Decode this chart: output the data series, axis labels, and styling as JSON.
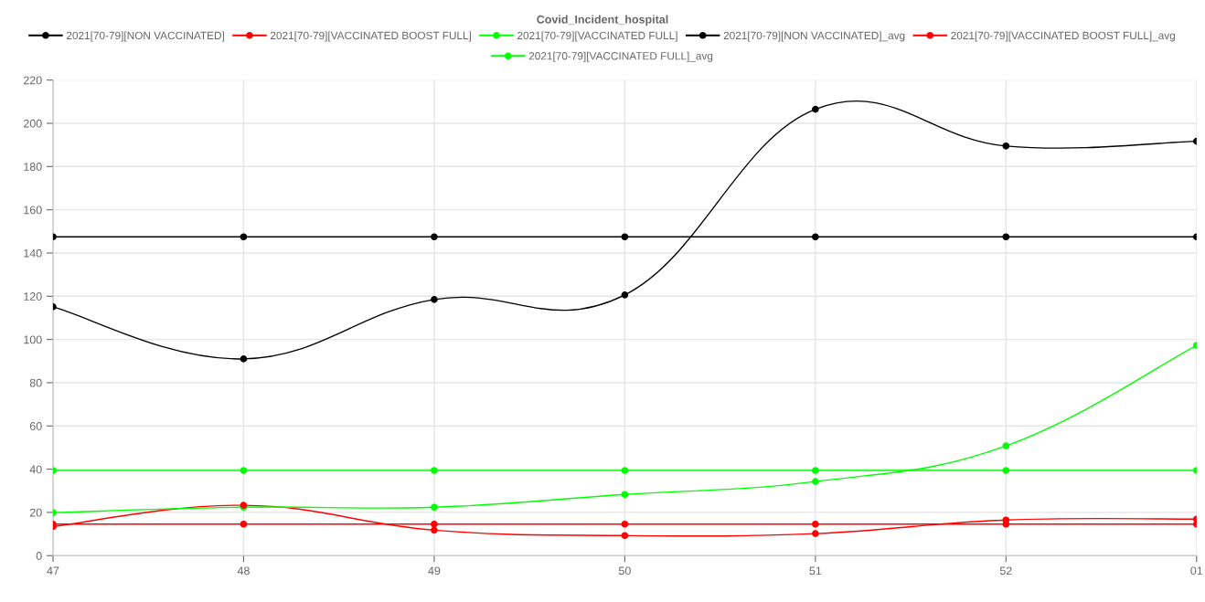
{
  "chart_data": {
    "type": "line",
    "title": "Covid_Incident_hospital",
    "categories": [
      "47",
      "48",
      "49",
      "50",
      "51",
      "52",
      "01"
    ],
    "series": [
      {
        "name": "2021[70-79][NON VACCINATED]",
        "color": "#000000",
        "values": [
          115.1,
          91,
          118.5,
          120.6,
          206.5,
          189.5,
          191.7
        ]
      },
      {
        "name": "2021[70-79][VACCINATED BOOST FULL]",
        "color": "#ff0000",
        "values": [
          13.5,
          23.3,
          11.8,
          9.3,
          10.2,
          16.5,
          16.9
        ]
      },
      {
        "name": "2021[70-79][VACCINATED FULL]",
        "color": "#00ff00",
        "values": [
          19.9,
          22.4,
          22.4,
          28.3,
          34.3,
          50.8,
          97.3
        ]
      },
      {
        "name": "2021[70-79][NON VACCINATED]_avg",
        "color": "#000000",
        "values": [
          147.5,
          147.5,
          147.5,
          147.5,
          147.5,
          147.5,
          147.5
        ]
      },
      {
        "name": "2021[70-79][VACCINATED BOOST FULL]_avg",
        "color": "#ff0000",
        "values": [
          14.6,
          14.6,
          14.6,
          14.6,
          14.6,
          14.6,
          14.6
        ]
      },
      {
        "name": "2021[70-79][VACCINATED FULL]_avg",
        "color": "#00ff00",
        "values": [
          39.4,
          39.4,
          39.4,
          39.4,
          39.4,
          39.4,
          39.4
        ]
      }
    ],
    "ylim": [
      0,
      220
    ],
    "yticks": [
      0,
      20,
      40,
      60,
      80,
      100,
      120,
      140,
      160,
      180,
      200,
      220
    ],
    "grid": true,
    "legend": "top",
    "marker": "circle",
    "line_style": "solid"
  }
}
